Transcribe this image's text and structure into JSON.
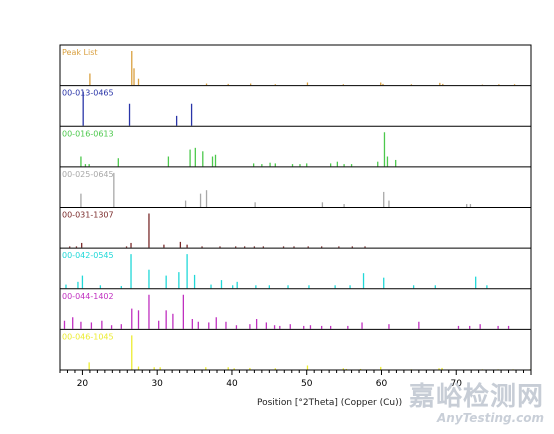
{
  "chart_data": {
    "type": "bar",
    "xlabel": "Position [°2Theta] (Copper (Cu))",
    "xlim": [
      17,
      80
    ],
    "xticks": [
      20,
      30,
      40,
      50,
      60,
      70
    ],
    "panels": [
      {
        "name": "Peak List",
        "color": "#d9a040",
        "x": [
          21.0,
          26.6,
          26.9,
          27.5,
          36.6,
          39.5,
          42.5,
          45.8,
          50.1,
          54.9,
          59.9,
          60.2,
          64.0,
          67.8,
          68.2,
          73.5,
          75.7,
          77.8
        ],
        "y": [
          35,
          100,
          50,
          20,
          6,
          5,
          6,
          4,
          9,
          4,
          9,
          5,
          4,
          8,
          5,
          3,
          4,
          4
        ]
      },
      {
        "name": "00-013-0465",
        "color": "#2a35a8",
        "x": [
          20.1,
          26.3,
          32.6,
          34.6
        ],
        "y": [
          100,
          65,
          30,
          65
        ]
      },
      {
        "name": "00-016-0613",
        "color": "#4cc84c",
        "x": [
          19.8,
          20.4,
          20.9,
          24.8,
          31.5,
          34.4,
          35.1,
          36.1,
          37.4,
          37.8,
          42.9,
          44.0,
          45.1,
          45.8,
          48.1,
          49.1,
          50.0,
          53.2,
          54.1,
          55.0,
          56.0,
          59.5,
          60.4,
          60.8,
          61.9
        ],
        "y": [
          30,
          8,
          8,
          25,
          30,
          50,
          55,
          45,
          30,
          35,
          10,
          8,
          12,
          10,
          8,
          8,
          10,
          10,
          15,
          8,
          8,
          15,
          100,
          30,
          20
        ]
      },
      {
        "name": "00-025-0645",
        "color": "#a8a8a8",
        "x": [
          19.8,
          24.2,
          33.8,
          35.8,
          36.6,
          43.1,
          52.1,
          55.0,
          60.3,
          61.0,
          71.4,
          71.9
        ],
        "y": [
          40,
          100,
          20,
          40,
          50,
          15,
          15,
          10,
          45,
          20,
          10,
          10
        ]
      },
      {
        "name": "00-031-1307",
        "color": "#7a2a2a",
        "x": [
          18.3,
          19.2,
          19.9,
          25.9,
          26.5,
          28.9,
          30.9,
          33.1,
          34.0,
          36.0,
          38.4,
          40.5,
          41.7,
          43.0,
          44.2,
          46.9,
          48.3,
          50.2,
          52.0,
          54.3,
          56.1,
          57.8
        ],
        "y": [
          5,
          5,
          15,
          5,
          15,
          100,
          10,
          18,
          10,
          5,
          5,
          5,
          5,
          5,
          5,
          5,
          5,
          5,
          5,
          5,
          5,
          5
        ]
      },
      {
        "name": "00-042-0545",
        "color": "#20d8d8",
        "x": [
          17.8,
          19.4,
          20.0,
          22.4,
          25.2,
          26.5,
          28.9,
          31.2,
          32.9,
          34.0,
          35.0,
          37.2,
          38.6,
          40.1,
          40.7,
          43.2,
          45.0,
          47.5,
          50.3,
          53.8,
          55.8,
          57.6,
          60.3,
          64.3,
          67.2,
          72.6,
          74.1
        ],
        "y": [
          12,
          20,
          38,
          10,
          8,
          100,
          55,
          38,
          48,
          100,
          40,
          12,
          25,
          10,
          20,
          10,
          10,
          10,
          10,
          10,
          10,
          45,
          32,
          10,
          10,
          35,
          10
        ]
      },
      {
        "name": "00-044-1402",
        "color": "#c030c0",
        "x": [
          17.6,
          18.7,
          19.8,
          21.2,
          22.6,
          23.9,
          25.2,
          26.6,
          27.5,
          28.9,
          30.2,
          31.2,
          32.1,
          33.5,
          34.7,
          35.5,
          36.9,
          37.9,
          39.2,
          40.6,
          42.4,
          43.3,
          44.6,
          45.7,
          46.4,
          47.8,
          49.6,
          50.5,
          52.0,
          53.2,
          55.5,
          57.4,
          61.0,
          65.0,
          70.3,
          71.8,
          73.2,
          75.6,
          77.0
        ],
        "y": [
          25,
          35,
          22,
          20,
          25,
          12,
          15,
          60,
          55,
          100,
          25,
          55,
          45,
          100,
          30,
          22,
          20,
          35,
          22,
          12,
          15,
          30,
          20,
          12,
          10,
          15,
          10,
          12,
          10,
          10,
          10,
          20,
          15,
          22,
          10,
          10,
          15,
          10,
          10
        ]
      },
      {
        "name": "00-046-1045",
        "color": "#ecec30",
        "x": [
          20.9,
          26.6,
          27.5,
          29.6,
          30.4,
          36.5,
          39.5,
          40.3,
          42.4,
          45.8,
          50.1,
          54.9,
          55.3,
          57.2,
          59.9,
          64.0,
          67.7,
          68.1,
          73.5,
          75.6,
          77.6,
          79.9
        ],
        "y": [
          22,
          100,
          10,
          8,
          8,
          8,
          8,
          5,
          6,
          5,
          13,
          5,
          3,
          3,
          9,
          2,
          5,
          6,
          2,
          2,
          2,
          2
        ]
      }
    ]
  },
  "watermark": {
    "cn": "嘉峪检测网",
    "en": "AnyTesting.com"
  }
}
